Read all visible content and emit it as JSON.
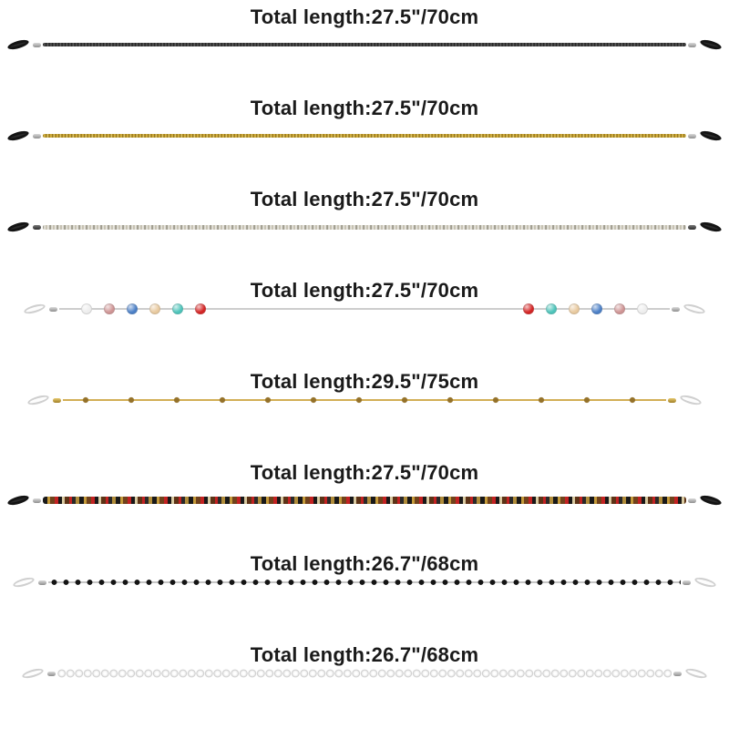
{
  "page": {
    "background": "#ffffff",
    "text_color": "#1a1a1a",
    "description": "Product sheet of 8 eyeglass chains with length labels"
  },
  "products": [
    {
      "id": "black-metal-chain",
      "label": "Total length:27.5\"/70cm",
      "chain_style": "gunmetal-link-chain",
      "loop_color": "#141414",
      "chain_colors": [
        "#1f1f1f",
        "#6e6e6e"
      ]
    },
    {
      "id": "gold-metal-chain",
      "label": "Total length:27.5\"/70cm",
      "chain_style": "gold-link-chain",
      "loop_color": "#141414",
      "chain_colors": [
        "#8d6a10",
        "#f3dd7f"
      ]
    },
    {
      "id": "silver-metal-chain",
      "label": "Total length:27.5\"/70cm",
      "chain_style": "silver-link-chain",
      "loop_color": "#141414",
      "chain_colors": [
        "#84816f",
        "#faf8f2"
      ]
    },
    {
      "id": "crystal-bead-chain",
      "label": "Total length:27.5\"/70cm",
      "chain_style": "thin-silver-chain-with-crystal-beads",
      "loop_color": "#fdfdfd",
      "chain_colors": [
        "#cdcdcd"
      ],
      "bead_colors_left": [
        "#ededed",
        "#cf9494",
        "#4a7fc7",
        "#e8c99e",
        "#4cc4ba",
        "#d42222"
      ],
      "bead_colors_right": [
        "#d42222",
        "#4cc4ba",
        "#e8c99e",
        "#4a7fc7",
        "#cf9494",
        "#ededed"
      ]
    },
    {
      "id": "gold-bead-station-chain",
      "label": "Total length:29.5\"/75cm",
      "chain_style": "gold-chain-with-spaced-beads",
      "loop_color": "#fdfdfd",
      "chain_colors": [
        "#d2ae55",
        "#94712a"
      ]
    },
    {
      "id": "multicolor-bead-chain",
      "label": "Total length:27.5\"/70cm",
      "chain_style": "dense-multicolor-beads",
      "loop_color": "#141414",
      "chain_colors": [
        "#191919",
        "#c22222",
        "#c49a3a",
        "#70421c",
        "#d8c9a0"
      ]
    },
    {
      "id": "black-bead-chain",
      "label": "Total length:26.7\"/68cm",
      "chain_style": "silver-chain-with-black-beads",
      "loop_color": "#fdfdfd",
      "chain_colors": [
        "#141414",
        "#c6c6c6"
      ]
    },
    {
      "id": "pearl-bead-chain",
      "label": "Total length:26.7\"/68cm",
      "chain_style": "dense-white-pearl-beads",
      "loop_color": "#fdfdfd",
      "chain_colors": [
        "#ffffff",
        "#c9c9c9"
      ]
    }
  ]
}
